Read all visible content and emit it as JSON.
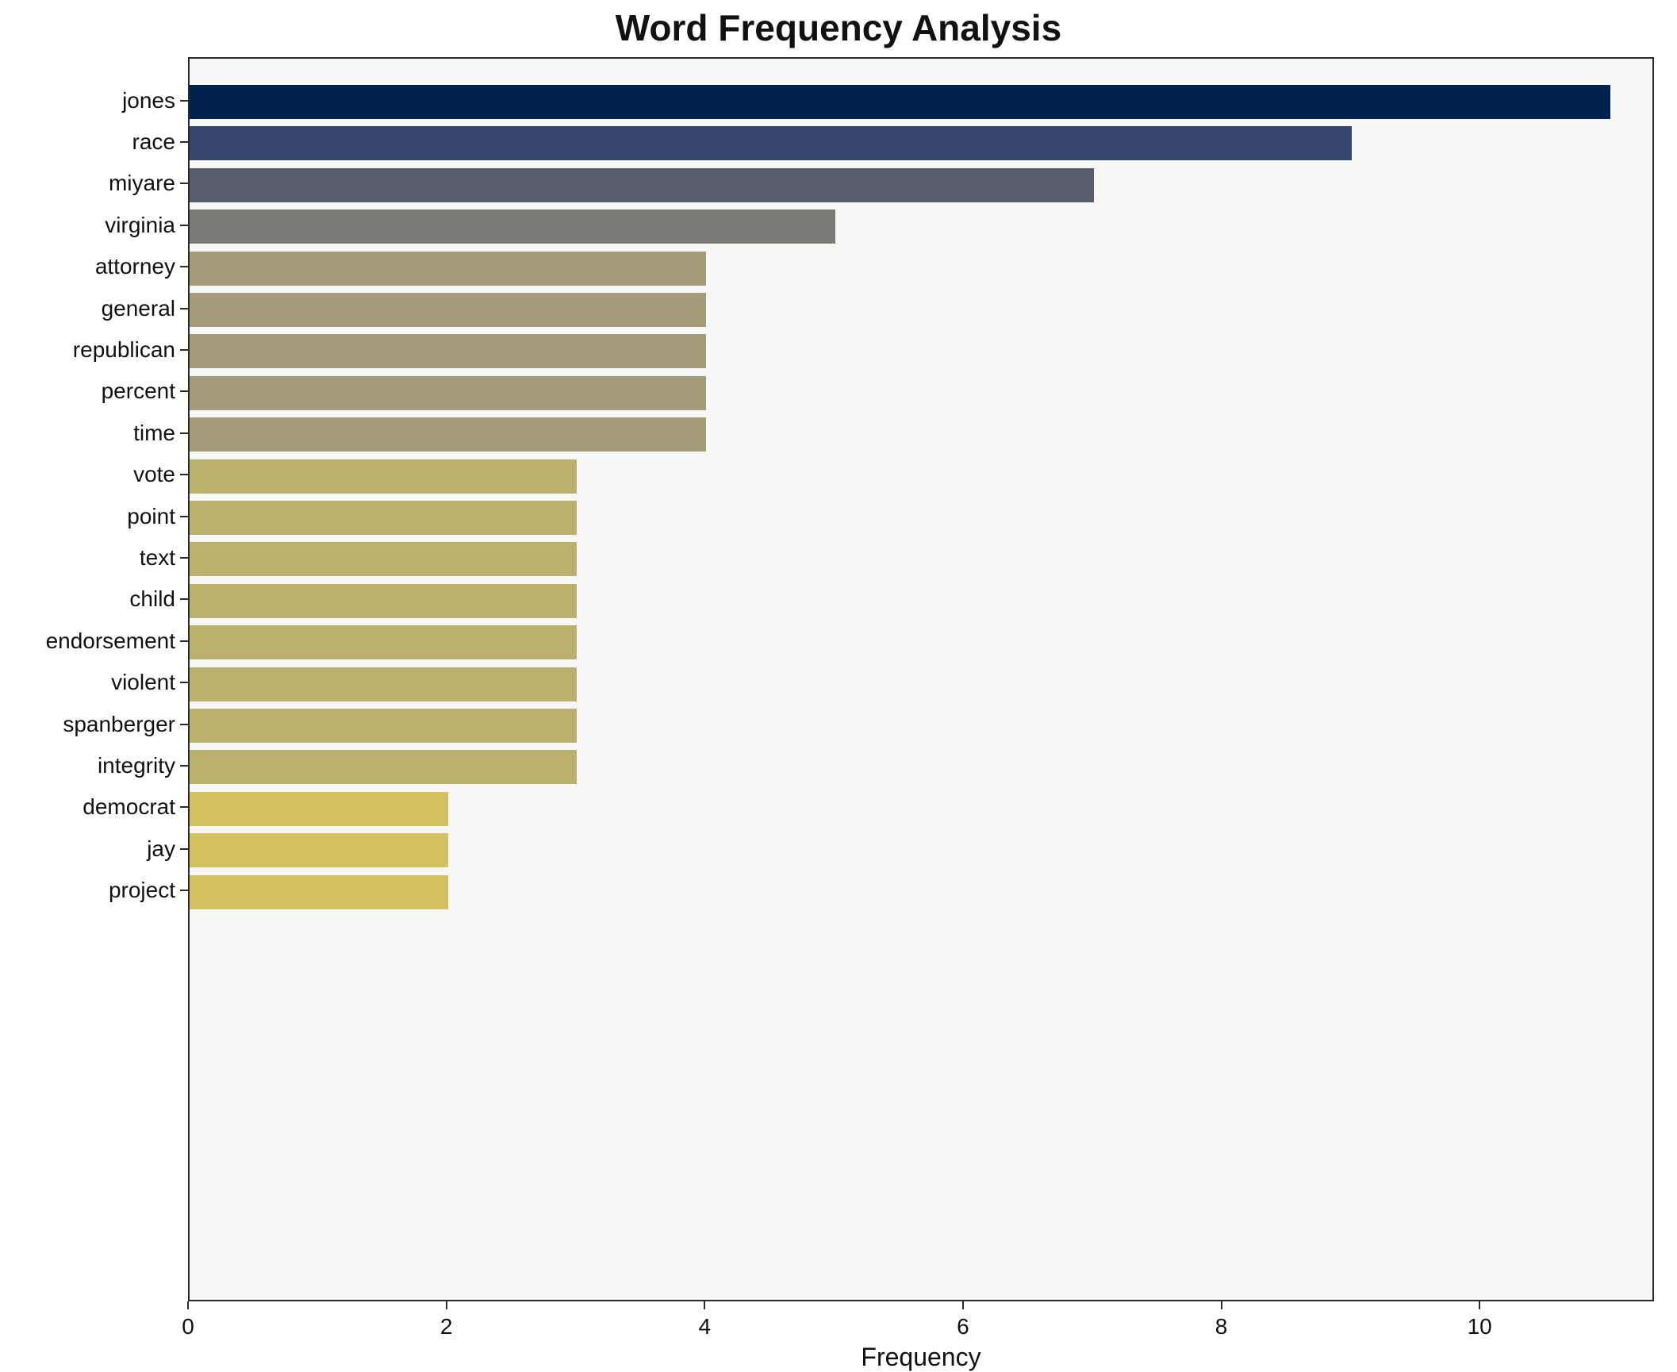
{
  "title": "Word Frequency Analysis",
  "xlabel": "Frequency",
  "chart_data": {
    "type": "bar",
    "orientation": "horizontal",
    "title": "Word Frequency Analysis",
    "xlabel": "Frequency",
    "ylabel": "",
    "xlim": [
      0,
      11.35
    ],
    "xticks": [
      0,
      2,
      4,
      6,
      8,
      10
    ],
    "grid": false,
    "legend": false,
    "categories": [
      "jones",
      "race",
      "miyare",
      "virginia",
      "attorney",
      "general",
      "republican",
      "percent",
      "time",
      "vote",
      "point",
      "text",
      "child",
      "endorsement",
      "violent",
      "spanberger",
      "integrity",
      "democrat",
      "jay",
      "project"
    ],
    "values": [
      11,
      9,
      7,
      5,
      4,
      4,
      4,
      4,
      4,
      3,
      3,
      3,
      3,
      3,
      3,
      3,
      3,
      2,
      2,
      2
    ],
    "bar_colors": [
      "#00204e",
      "#35466c",
      "#575d6d",
      "#7c7a77",
      "#a49c78",
      "#a49c78",
      "#a49c78",
      "#a49c78",
      "#a49c78",
      "#bcb06f",
      "#bcb06f",
      "#bcb06f",
      "#bcb06f",
      "#bcb06f",
      "#bcb06f",
      "#bcb06f",
      "#bcb06f",
      "#d3c05e",
      "#d3c05e",
      "#d3c05e"
    ],
    "plot_bg": "#f7f7f6",
    "spine_color": "#2b2b2b"
  }
}
